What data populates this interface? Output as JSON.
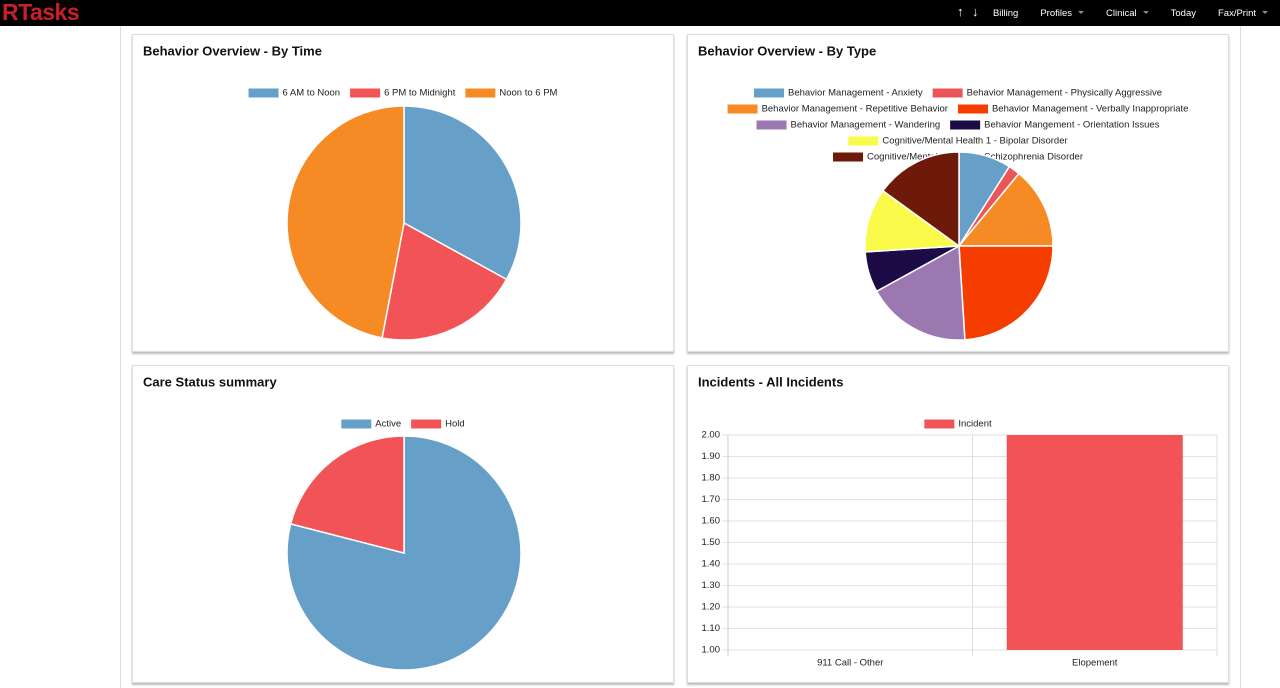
{
  "header": {
    "brand": "RTasks",
    "arrows": [
      "↑",
      "↓"
    ],
    "items": [
      "Billing",
      "Profiles",
      "Clinical",
      "Today",
      "Fax/Print"
    ]
  },
  "chart_data": [
    {
      "type": "pie",
      "title": "Behavior Overview - By Time",
      "categories": [
        "6 AM to Noon",
        "6 PM to Midnight",
        "Noon to 6 PM"
      ],
      "values": [
        33,
        20,
        47
      ],
      "colors": [
        "#66a0c8",
        "#f25356",
        "#f68b26"
      ]
    },
    {
      "type": "pie",
      "title": "Behavior Overview - By Type",
      "categories": [
        "Behavior Management - Anxiety",
        "Behavior Management - Physically Aggressive",
        "Behavior Management - Repetitive Behavior",
        "Behavior Management - Verbally Inappropriate",
        "Behavior Management - Wandering",
        "Behavior Mangement - Orientation Issues",
        "Cognitive/Mental Health 1 - Bipolar Disorder",
        "Cognitive/Mental Health 2 - Schizophrenia Disorder"
      ],
      "values": [
        9,
        2,
        14,
        24,
        18,
        7,
        11,
        15
      ],
      "colors": [
        "#66a0c8",
        "#ec5558",
        "#f68b26",
        "#f53d00",
        "#9b78b0",
        "#1d0b47",
        "#fafa4a",
        "#6e1a0b"
      ]
    },
    {
      "type": "pie",
      "title": "Care Status summary",
      "categories": [
        "Active",
        "Hold"
      ],
      "values": [
        79,
        21
      ],
      "colors": [
        "#66a0c8",
        "#f25356"
      ]
    },
    {
      "type": "bar",
      "title": "Incidents - All Incidents",
      "categories": [
        "911 Call - Other",
        "Elopement"
      ],
      "series": [
        {
          "name": "Incident",
          "color": "#f25356",
          "values": [
            1,
            2
          ]
        }
      ],
      "ylim": [
        1,
        2
      ],
      "yticks": [
        {
          "value": 1,
          "label": "1.00"
        },
        {
          "value": 1.1,
          "label": "1.10"
        },
        {
          "value": 1.2,
          "label": "1.20"
        },
        {
          "value": 1.3,
          "label": "1.30"
        },
        {
          "value": 1.4,
          "label": "1.40"
        },
        {
          "value": 1.5,
          "label": "1.50"
        },
        {
          "value": 1.6,
          "label": "1.60"
        },
        {
          "value": 1.7,
          "label": "1.70"
        },
        {
          "value": 1.8,
          "label": "1.80"
        },
        {
          "value": 1.9,
          "label": "1.90"
        },
        {
          "value": 2,
          "label": "2.00"
        }
      ],
      "grid": true
    }
  ]
}
